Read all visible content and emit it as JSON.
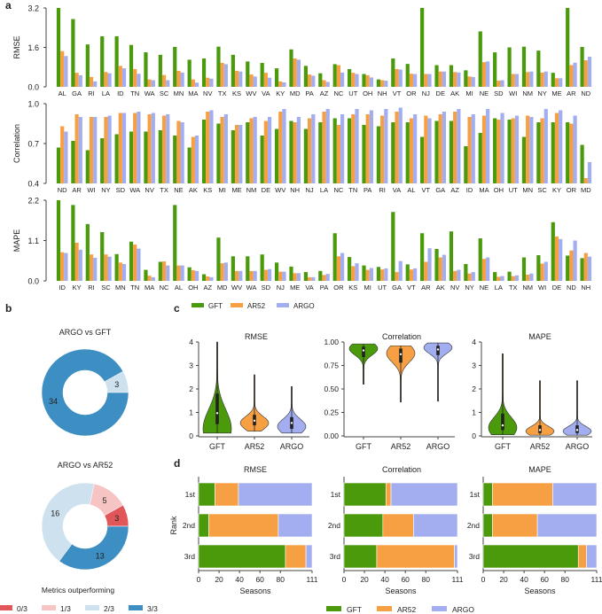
{
  "colors": {
    "GFT": "#4a9a0c",
    "AR52": "#f7a043",
    "ARGO": "#a2aef0",
    "pie_0of3": "#e15759",
    "pie_1of3": "#f6c4c3",
    "pie_2of3": "#cde1ee",
    "pie_3of3": "#3d8ec2"
  },
  "panel_labels": {
    "a": "a",
    "b": "b",
    "c": "c",
    "d": "d"
  },
  "legend_series": [
    "GFT",
    "AR52",
    "ARGO"
  ],
  "chart_data": [
    {
      "id": "a-rmse",
      "type": "bar",
      "panel": "a",
      "ylabel": "RMSE",
      "ylim": [
        0,
        3.2
      ],
      "yticks": [
        "0.0",
        "1.6",
        "3.2"
      ],
      "categories": [
        "AL",
        "GA",
        "RI",
        "LA",
        "ID",
        "TN",
        "WA",
        "SC",
        "MN",
        "MA",
        "NV",
        "TX",
        "KS",
        "WV",
        "VA",
        "KY",
        "MD",
        "PA",
        "AZ",
        "NC",
        "UT",
        "OH",
        "NH",
        "VT",
        "OR",
        "NJ",
        "DE",
        "AK",
        "MI",
        "NE",
        "SD",
        "WI",
        "NM",
        "NY",
        "ME",
        "AR",
        "ND"
      ],
      "series": [
        {
          "name": "GFT",
          "values": [
            3.2,
            2.75,
            1.72,
            2.05,
            2.05,
            1.7,
            1.4,
            1.3,
            1.62,
            1.1,
            1.15,
            1.63,
            1.3,
            1.03,
            0.97,
            0.75,
            1.52,
            0.85,
            0.55,
            0.92,
            0.72,
            0.52,
            0.3,
            1.15,
            0.93,
            3.2,
            0.88,
            0.88,
            0.67,
            2.25,
            1.4,
            1.6,
            1.63,
            1.47,
            0.57,
            3.2,
            1.62
          ]
        },
        {
          "name": "AR52",
          "values": [
            1.45,
            0.57,
            0.4,
            0.6,
            0.85,
            0.72,
            0.3,
            0.48,
            0.65,
            0.3,
            0.37,
            0.97,
            0.65,
            0.5,
            0.57,
            0.22,
            1.15,
            0.5,
            0.27,
            0.88,
            0.57,
            0.47,
            0.27,
            0.72,
            0.53,
            0.52,
            0.62,
            0.6,
            0.42,
            1.0,
            0.25,
            0.52,
            0.6,
            0.58,
            0.35,
            0.88,
            1.08
          ]
        },
        {
          "name": "ARGO",
          "values": [
            1.25,
            0.47,
            0.22,
            0.55,
            0.75,
            0.53,
            0.27,
            0.27,
            0.58,
            0.17,
            0.33,
            0.92,
            0.62,
            0.42,
            0.37,
            0.18,
            1.1,
            0.45,
            0.2,
            0.58,
            0.52,
            0.38,
            0.25,
            0.7,
            0.52,
            0.52,
            0.62,
            0.58,
            0.4,
            1.03,
            0.27,
            0.52,
            0.62,
            0.62,
            0.35,
            0.98,
            1.22
          ]
        }
      ]
    },
    {
      "id": "a-correlation",
      "type": "bar",
      "panel": "a",
      "ylabel": "Correlation",
      "ylim": [
        0.4,
        1.0
      ],
      "yticks": [
        "0.4",
        "0.7",
        "1.0"
      ],
      "categories": [
        "ND",
        "AR",
        "WI",
        "NY",
        "SD",
        "WA",
        "NV",
        "TX",
        "NE",
        "AK",
        "KS",
        "MI",
        "ME",
        "NM",
        "DE",
        "WV",
        "NH",
        "NJ",
        "LA",
        "NC",
        "TN",
        "PA",
        "RI",
        "VA",
        "AL",
        "VT",
        "GA",
        "AZ",
        "ID",
        "MA",
        "OH",
        "UT",
        "MN",
        "SC",
        "KY",
        "OR",
        "MD"
      ],
      "series": [
        {
          "name": "GFT",
          "values": [
            0.67,
            0.72,
            0.65,
            0.74,
            0.77,
            0.79,
            0.79,
            0.8,
            0.76,
            0.67,
            0.88,
            0.85,
            0.8,
            0.86,
            0.76,
            0.81,
            0.87,
            0.81,
            0.86,
            0.89,
            0.89,
            0.84,
            0.83,
            0.86,
            0.86,
            0.75,
            0.87,
            0.87,
            0.68,
            0.78,
            0.89,
            0.88,
            0.75,
            0.86,
            0.86,
            0.86,
            0.69
          ]
        },
        {
          "name": "AR52",
          "values": [
            0.83,
            0.92,
            0.9,
            0.9,
            0.93,
            0.93,
            0.92,
            0.91,
            0.87,
            0.75,
            0.94,
            0.9,
            0.84,
            0.89,
            0.87,
            0.94,
            0.86,
            0.89,
            0.94,
            0.84,
            0.92,
            0.92,
            0.91,
            0.94,
            0.89,
            0.91,
            0.92,
            0.94,
            0.9,
            0.91,
            0.88,
            0.89,
            0.91,
            0.89,
            0.93,
            0.85,
            0.44
          ]
        },
        {
          "name": "ARGO",
          "values": [
            0.79,
            0.9,
            0.9,
            0.91,
            0.93,
            0.94,
            0.93,
            0.92,
            0.86,
            0.76,
            0.95,
            0.92,
            0.84,
            0.9,
            0.9,
            0.96,
            0.9,
            0.92,
            0.96,
            0.92,
            0.96,
            0.95,
            0.96,
            0.97,
            0.92,
            0.89,
            0.94,
            0.96,
            0.92,
            0.96,
            0.93,
            0.91,
            0.9,
            0.96,
            0.95,
            0.91,
            0.56
          ]
        }
      ]
    },
    {
      "id": "a-mape",
      "type": "bar",
      "panel": "a",
      "ylabel": "MAPE",
      "ylim": [
        0,
        2.2
      ],
      "yticks": [
        "0.0",
        "1.1",
        "2.2"
      ],
      "categories": [
        "ID",
        "KY",
        "RI",
        "SC",
        "MN",
        "TN",
        "MA",
        "NC",
        "AL",
        "OH",
        "AZ",
        "MD",
        "WV",
        "WA",
        "SD",
        "NJ",
        "ME",
        "VA",
        "PA",
        "OR",
        "KS",
        "MI",
        "UT",
        "GA",
        "VT",
        "AR",
        "AK",
        "NV",
        "NY",
        "NE",
        "LA",
        "TX",
        "NM",
        "WI",
        "DE",
        "ND",
        "NH"
      ],
      "series": [
        {
          "name": "GFT",
          "values": [
            2.2,
            2.07,
            1.55,
            1.33,
            0.73,
            1.07,
            0.3,
            0.52,
            2.07,
            0.37,
            0.18,
            1.18,
            0.67,
            0.67,
            0.72,
            0.5,
            0.39,
            0.24,
            0.27,
            1.3,
            0.65,
            0.42,
            0.38,
            1.88,
            0.45,
            1.3,
            0.87,
            1.35,
            0.46,
            1.16,
            0.24,
            0.25,
            0.64,
            0.7,
            1.6,
            0.69,
            0.62
          ]
        },
        {
          "name": "AR52",
          "values": [
            0.78,
            1.04,
            0.72,
            0.72,
            0.5,
            0.99,
            0.14,
            0.53,
            0.42,
            0.29,
            0.12,
            0.48,
            0.27,
            0.27,
            0.3,
            0.25,
            0.21,
            0.1,
            0.16,
            0.67,
            0.4,
            0.3,
            0.31,
            0.24,
            0.31,
            0.52,
            0.64,
            0.27,
            0.2,
            0.6,
            0.11,
            0.13,
            0.17,
            0.47,
            1.21,
            0.83,
            0.76
          ]
        },
        {
          "name": "ARGO",
          "values": [
            0.76,
            0.85,
            0.63,
            0.66,
            0.46,
            0.88,
            0.1,
            0.42,
            0.42,
            0.27,
            0.1,
            0.5,
            0.27,
            0.27,
            0.32,
            0.25,
            0.21,
            0.1,
            0.19,
            0.76,
            0.48,
            0.35,
            0.34,
            0.54,
            0.34,
            0.89,
            0.71,
            0.3,
            0.24,
            0.64,
            0.13,
            0.15,
            0.2,
            0.52,
            1.14,
            1.1,
            0.66
          ]
        }
      ]
    },
    {
      "id": "b-argo-vs-gft",
      "type": "pie",
      "panel": "b",
      "title": "ARGO vs GFT",
      "donut": true,
      "slices": [
        {
          "label": "2/3",
          "value": 3
        },
        {
          "label": "3/3",
          "value": 34
        }
      ]
    },
    {
      "id": "b-argo-vs-ar52",
      "type": "pie",
      "panel": "b",
      "title": "ARGO vs AR52",
      "donut": true,
      "slices": [
        {
          "label": "0/3",
          "value": 3
        },
        {
          "label": "1/3",
          "value": 5
        },
        {
          "label": "2/3",
          "value": 16
        },
        {
          "label": "3/3",
          "value": 13
        }
      ],
      "legend_title": "Metrics outperforming",
      "legend": [
        "0/3",
        "1/3",
        "2/3",
        "3/3"
      ]
    },
    {
      "id": "c-rmse",
      "type": "violin",
      "panel": "c",
      "title": "RMSE",
      "categories": [
        "GFT",
        "AR52",
        "ARGO"
      ],
      "ylim": [
        0,
        4
      ],
      "yticks": [
        "0",
        "1",
        "2",
        "3",
        "4"
      ],
      "series": [
        {
          "name": "GFT",
          "min": 0.12,
          "q1": 0.5,
          "median": 0.97,
          "q3": 1.8,
          "max": 4.0,
          "mode": 0.3
        },
        {
          "name": "AR52",
          "min": 0.2,
          "q1": 0.45,
          "median": 0.65,
          "q3": 0.9,
          "max": 2.6,
          "mode": 0.55
        },
        {
          "name": "ARGO",
          "min": 0.12,
          "q1": 0.3,
          "median": 0.55,
          "q3": 0.8,
          "max": 2.1,
          "mode": 0.4
        }
      ]
    },
    {
      "id": "c-correlation",
      "type": "violin",
      "panel": "c",
      "title": "Correlation",
      "categories": [
        "GFT",
        "AR52",
        "ARGO"
      ],
      "ylim": [
        0,
        1
      ],
      "yticks": [
        "0.00",
        "0.25",
        "0.50",
        "0.75",
        "1.00"
      ],
      "series": [
        {
          "name": "GFT",
          "min": 0.55,
          "q1": 0.84,
          "median": 0.91,
          "q3": 0.95,
          "max": 0.98,
          "mode": 0.93
        },
        {
          "name": "AR52",
          "min": 0.36,
          "q1": 0.78,
          "median": 0.87,
          "q3": 0.93,
          "max": 0.96,
          "mode": 0.88
        },
        {
          "name": "ARGO",
          "min": 0.37,
          "q1": 0.86,
          "median": 0.92,
          "q3": 0.96,
          "max": 0.99,
          "mode": 0.94
        }
      ]
    },
    {
      "id": "c-mape",
      "type": "violin",
      "panel": "c",
      "title": "MAPE",
      "categories": [
        "GFT",
        "AR52",
        "ARGO"
      ],
      "ylim": [
        0,
        4
      ],
      "yticks": [
        "0",
        "1",
        "2",
        "3",
        "4"
      ],
      "series": [
        {
          "name": "GFT",
          "min": 0.05,
          "q1": 0.25,
          "median": 0.45,
          "q3": 0.95,
          "max": 3.5,
          "mode": 0.35
        },
        {
          "name": "AR52",
          "min": 0.03,
          "q1": 0.12,
          "median": 0.25,
          "q3": 0.45,
          "max": 2.35,
          "mode": 0.2
        },
        {
          "name": "ARGO",
          "min": 0.03,
          "q1": 0.12,
          "median": 0.25,
          "q3": 0.45,
          "max": 2.35,
          "mode": 0.2
        }
      ]
    },
    {
      "id": "d-rmse",
      "type": "bar",
      "orientation": "horizontal",
      "stacked": true,
      "panel": "d",
      "title": "RMSE",
      "xlabel": "Seasons",
      "ylabel": "Rank",
      "xlim": [
        0,
        111
      ],
      "xticks": [
        "0",
        "20",
        "40",
        "60",
        "80",
        "111"
      ],
      "categories": [
        "1st",
        "2nd",
        "3rd"
      ],
      "series": [
        {
          "name": "GFT",
          "values": [
            16,
            10,
            85
          ]
        },
        {
          "name": "AR52",
          "values": [
            23,
            68,
            20
          ]
        },
        {
          "name": "ARGO",
          "values": [
            72,
            33,
            6
          ]
        }
      ]
    },
    {
      "id": "d-correlation",
      "type": "bar",
      "orientation": "horizontal",
      "stacked": true,
      "panel": "d",
      "title": "Correlation",
      "xlabel": "Seasons",
      "ylabel": "",
      "xlim": [
        0,
        111
      ],
      "xticks": [
        "0",
        "20",
        "40",
        "60",
        "80",
        "111"
      ],
      "categories": [
        "1st",
        "2nd",
        "3rd"
      ],
      "series": [
        {
          "name": "GFT",
          "values": [
            41,
            38,
            32
          ]
        },
        {
          "name": "AR52",
          "values": [
            5,
            30,
            76
          ]
        },
        {
          "name": "ARGO",
          "values": [
            65,
            43,
            3
          ]
        }
      ]
    },
    {
      "id": "d-mape",
      "type": "bar",
      "orientation": "horizontal",
      "stacked": true,
      "panel": "d",
      "title": "MAPE",
      "xlabel": "Seasons",
      "ylabel": "",
      "xlim": [
        0,
        111
      ],
      "xticks": [
        "0",
        "20",
        "40",
        "60",
        "80",
        "111"
      ],
      "categories": [
        "1st",
        "2nd",
        "3rd"
      ],
      "series": [
        {
          "name": "GFT",
          "values": [
            9,
            9,
            93
          ]
        },
        {
          "name": "AR52",
          "values": [
            59,
            44,
            8
          ]
        },
        {
          "name": "ARGO",
          "values": [
            43,
            58,
            10
          ]
        }
      ]
    }
  ]
}
